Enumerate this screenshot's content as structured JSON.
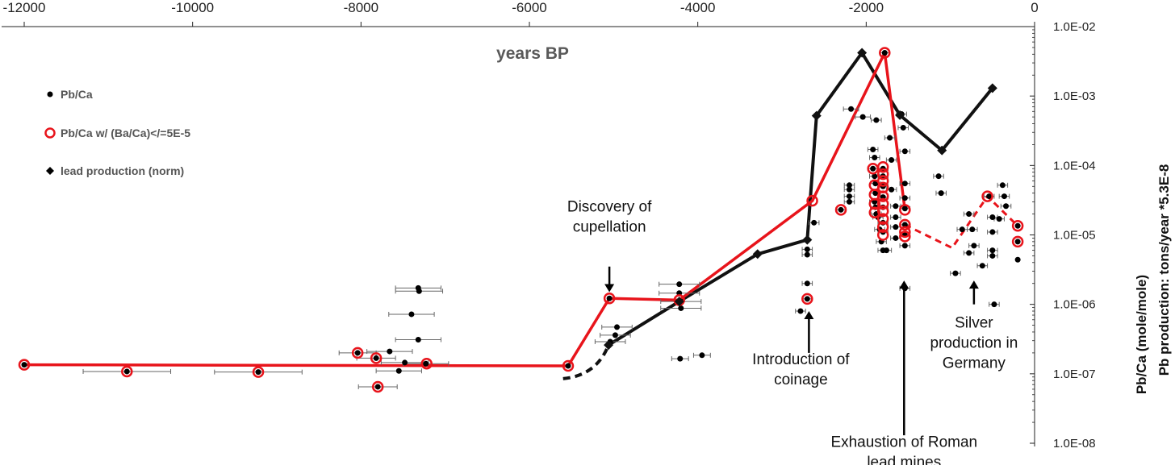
{
  "chart_data": {
    "type": "scatter",
    "title": "",
    "xlabel": "years BP",
    "ylabel_lines": [
      "Pb/Ca (mole/mole)",
      "Pb production: tons/year *5.3E-8"
    ],
    "xlim": [
      -12000,
      0
    ],
    "ylim": [
      1e-08,
      0.01
    ],
    "yscale": "log",
    "x_ticks": [
      -12000,
      -10000,
      -8000,
      -6000,
      -4000,
      -2000,
      0
    ],
    "x_tick_labels": [
      "-12000",
      "-10000",
      "-8000",
      "-6000",
      "-4000",
      "-2000",
      "0"
    ],
    "y_ticks": [
      1e-08,
      1e-07,
      1e-06,
      1e-05,
      0.0001,
      0.001,
      0.01
    ],
    "y_tick_labels": [
      "1.0E-08",
      "1.0E-07",
      "1.0E-06",
      "1.0E-05",
      "1.0E-04",
      "1.0E-03",
      "1.0E-02"
    ],
    "legend": {
      "position": "top-left",
      "entries": [
        {
          "label": "Pb/Ca",
          "marker": "dot"
        },
        {
          "label": "Pb/Ca w/ (Ba/Ca)</=5E-5",
          "marker": "red-circle"
        },
        {
          "label": "lead production (norm)",
          "marker": "diamond"
        }
      ]
    },
    "series": [
      {
        "name": "Pb/Ca",
        "color": "#000000",
        "points": [
          {
            "x": -12000,
            "y": 1.35e-07,
            "err": 0
          },
          {
            "x": -10780,
            "y": 1.08e-07,
            "err": 520
          },
          {
            "x": -9220,
            "y": 1.06e-07,
            "err": 520
          },
          {
            "x": -8040,
            "y": 2e-07,
            "err": 220
          },
          {
            "x": -7800,
            "y": 6.5e-08,
            "err": 230
          },
          {
            "x": -7820,
            "y": 1.68e-07,
            "err": 230
          },
          {
            "x": -7660,
            "y": 2.1e-07,
            "err": 270
          },
          {
            "x": -7550,
            "y": 1.1e-07,
            "err": 270
          },
          {
            "x": -7480,
            "y": 1.45e-07,
            "err": 280
          },
          {
            "x": -7320,
            "y": 1.72e-06,
            "err": 270
          },
          {
            "x": -7310,
            "y": 1.55e-06,
            "err": 280
          },
          {
            "x": -7400,
            "y": 7.2e-07,
            "err": 270
          },
          {
            "x": -7320,
            "y": 3.1e-07,
            "err": 270
          },
          {
            "x": -7230,
            "y": 1.4e-07,
            "err": 270
          },
          {
            "x": -5540,
            "y": 1.3e-07,
            "err": 0
          },
          {
            "x": -5050,
            "y": 1.22e-06,
            "err": 0
          },
          {
            "x": -4960,
            "y": 4.7e-07,
            "err": 180
          },
          {
            "x": -4980,
            "y": 3.6e-07,
            "err": 180
          },
          {
            "x": -5040,
            "y": 2.9e-07,
            "err": 180
          },
          {
            "x": -4220,
            "y": 1.95e-06,
            "err": 240
          },
          {
            "x": -4220,
            "y": 1.45e-06,
            "err": 240
          },
          {
            "x": -4200,
            "y": 1.1e-06,
            "err": 240
          },
          {
            "x": -4200,
            "y": 8.8e-07,
            "err": 240
          },
          {
            "x": -4210,
            "y": 1.65e-07,
            "err": 100
          },
          {
            "x": -3950,
            "y": 1.85e-07,
            "err": 100
          },
          {
            "x": -2700,
            "y": 2e-06,
            "err": 60
          },
          {
            "x": -2700,
            "y": 1.2e-06,
            "err": 60
          },
          {
            "x": -2780,
            "y": 8e-07,
            "err": 60
          },
          {
            "x": -2700,
            "y": 6.2e-06,
            "err": 60
          },
          {
            "x": -2700,
            "y": 5.2e-06,
            "err": 60
          },
          {
            "x": -2620,
            "y": 1.5e-05,
            "err": 60
          },
          {
            "x": -2300,
            "y": 2.3e-05,
            "err": 60
          },
          {
            "x": -2200,
            "y": 5.2e-05,
            "err": 60
          },
          {
            "x": -2200,
            "y": 4.5e-05,
            "err": 60
          },
          {
            "x": -2200,
            "y": 3.6e-05,
            "err": 60
          },
          {
            "x": -2200,
            "y": 3e-05,
            "err": 60
          },
          {
            "x": -2180,
            "y": 0.00065,
            "err": 90
          },
          {
            "x": -2040,
            "y": 0.0005,
            "err": 90
          },
          {
            "x": -1880,
            "y": 0.00045,
            "err": 60
          },
          {
            "x": -1920,
            "y": 0.00017,
            "err": 60
          },
          {
            "x": -1900,
            "y": 0.00013,
            "err": 60
          },
          {
            "x": -1920,
            "y": 9e-05,
            "err": 60
          },
          {
            "x": -1900,
            "y": 7e-05,
            "err": 60
          },
          {
            "x": -1890,
            "y": 5.5e-05,
            "err": 60
          },
          {
            "x": -1890,
            "y": 4e-05,
            "err": 60
          },
          {
            "x": -1900,
            "y": 3e-05,
            "err": 60
          },
          {
            "x": -1890,
            "y": 2.5e-05,
            "err": 60
          },
          {
            "x": -1880,
            "y": 2e-05,
            "err": 60
          },
          {
            "x": -1860,
            "y": 1.8e-05,
            "err": 60
          },
          {
            "x": -1840,
            "y": 1.2e-05,
            "err": 60
          },
          {
            "x": -1820,
            "y": 8e-06,
            "err": 60
          },
          {
            "x": -1800,
            "y": 6e-06,
            "err": 60
          },
          {
            "x": -1760,
            "y": 6e-06,
            "err": 60
          },
          {
            "x": -1800,
            "y": 9e-05,
            "err": 60
          },
          {
            "x": -1800,
            "y": 7e-05,
            "err": 60
          },
          {
            "x": -1800,
            "y": 5e-05,
            "err": 60
          },
          {
            "x": -1800,
            "y": 3.5e-05,
            "err": 60
          },
          {
            "x": -1800,
            "y": 2.5e-05,
            "err": 60
          },
          {
            "x": -1800,
            "y": 1.5e-05,
            "err": 60
          },
          {
            "x": -1800,
            "y": 1.1e-05,
            "err": 60
          },
          {
            "x": -1780,
            "y": 0.0042,
            "err": 60
          },
          {
            "x": -1720,
            "y": 0.00025,
            "err": 60
          },
          {
            "x": -1700,
            "y": 0.00012,
            "err": 60
          },
          {
            "x": -1700,
            "y": 4.5e-05,
            "err": 60
          },
          {
            "x": -1650,
            "y": 2.6e-05,
            "err": 60
          },
          {
            "x": -1650,
            "y": 1.8e-05,
            "err": 60
          },
          {
            "x": -1650,
            "y": 1.3e-05,
            "err": 60
          },
          {
            "x": -1650,
            "y": 9e-06,
            "err": 60
          },
          {
            "x": -1580,
            "y": 0.00055,
            "err": 60
          },
          {
            "x": -1560,
            "y": 0.00035,
            "err": 60
          },
          {
            "x": -1540,
            "y": 0.00016,
            "err": 60
          },
          {
            "x": -1540,
            "y": 5.5e-05,
            "err": 60
          },
          {
            "x": -1540,
            "y": 3.4e-05,
            "err": 60
          },
          {
            "x": -1540,
            "y": 2.4e-05,
            "err": 60
          },
          {
            "x": -1540,
            "y": 1.4e-05,
            "err": 60
          },
          {
            "x": -1540,
            "y": 1e-05,
            "err": 60
          },
          {
            "x": -1540,
            "y": 7e-06,
            "err": 60
          },
          {
            "x": -1540,
            "y": 1.7e-06,
            "err": 60
          },
          {
            "x": -1140,
            "y": 7e-05,
            "err": 60
          },
          {
            "x": -1110,
            "y": 4e-05,
            "err": 60
          },
          {
            "x": -940,
            "y": 2.8e-06,
            "err": 60
          },
          {
            "x": -860,
            "y": 1.2e-05,
            "err": 60
          },
          {
            "x": -780,
            "y": 2e-05,
            "err": 60
          },
          {
            "x": -740,
            "y": 1.2e-05,
            "err": 60
          },
          {
            "x": -780,
            "y": 5.5e-06,
            "err": 60
          },
          {
            "x": -720,
            "y": 7e-06,
            "err": 60
          },
          {
            "x": -620,
            "y": 3.6e-06,
            "err": 60
          },
          {
            "x": -540,
            "y": 3.6e-05,
            "err": 60
          },
          {
            "x": -500,
            "y": 1.8e-05,
            "err": 60
          },
          {
            "x": -500,
            "y": 1.1e-05,
            "err": 60
          },
          {
            "x": -500,
            "y": 6e-06,
            "err": 60
          },
          {
            "x": -500,
            "y": 5e-06,
            "err": 60
          },
          {
            "x": -480,
            "y": 1e-06,
            "err": 60
          },
          {
            "x": -420,
            "y": 1.7e-05,
            "err": 60
          },
          {
            "x": -380,
            "y": 5.2e-05,
            "err": 60
          },
          {
            "x": -360,
            "y": 3.6e-05,
            "err": 60
          },
          {
            "x": -340,
            "y": 2.6e-05,
            "err": 60
          },
          {
            "x": -200,
            "y": 1.35e-05,
            "err": 0
          },
          {
            "x": -200,
            "y": 8e-06,
            "err": 0
          },
          {
            "x": -200,
            "y": 4.4e-06,
            "err": 0
          }
        ]
      },
      {
        "name": "Pb/Ca w/ (Ba/Ca)</=5E-5",
        "color": "#e8141b",
        "line_points": [
          {
            "x": -12000,
            "y": 1.35e-07
          },
          {
            "x": -5540,
            "y": 1.3e-07
          },
          {
            "x": -5050,
            "y": 1.22e-06
          },
          {
            "x": -4220,
            "y": 1.15e-06
          },
          {
            "x": -2640,
            "y": 3.1e-05
          },
          {
            "x": -1780,
            "y": 0.0042
          },
          {
            "x": -1540,
            "y": 2.3e-05
          }
        ],
        "dashed_points": [
          {
            "x": -1540,
            "y": 1.4e-05
          },
          {
            "x": -980,
            "y": 6.5e-06
          },
          {
            "x": -560,
            "y": 3.6e-05
          },
          {
            "x": -200,
            "y": 1.35e-05
          }
        ],
        "circles": [
          {
            "x": -12000,
            "y": 1.35e-07
          },
          {
            "x": -10780,
            "y": 1.08e-07
          },
          {
            "x": -9220,
            "y": 1.06e-07
          },
          {
            "x": -8040,
            "y": 2e-07
          },
          {
            "x": -7820,
            "y": 1.68e-07
          },
          {
            "x": -7800,
            "y": 6.5e-08
          },
          {
            "x": -7220,
            "y": 1.4e-07
          },
          {
            "x": -5540,
            "y": 1.3e-07
          },
          {
            "x": -5050,
            "y": 1.22e-06
          },
          {
            "x": -4220,
            "y": 1.15e-06
          },
          {
            "x": -2640,
            "y": 3.1e-05
          },
          {
            "x": -2300,
            "y": 2.3e-05
          },
          {
            "x": -2700,
            "y": 1.2e-06
          },
          {
            "x": -1920,
            "y": 9e-05
          },
          {
            "x": -1900,
            "y": 5.2e-05
          },
          {
            "x": -1900,
            "y": 3.8e-05
          },
          {
            "x": -1900,
            "y": 2.8e-05
          },
          {
            "x": -1900,
            "y": 2.1e-05
          },
          {
            "x": -1800,
            "y": 9.5e-05
          },
          {
            "x": -1800,
            "y": 7.5e-05
          },
          {
            "x": -1800,
            "y": 6e-05
          },
          {
            "x": -1800,
            "y": 4.8e-05
          },
          {
            "x": -1800,
            "y": 3.6e-05
          },
          {
            "x": -1800,
            "y": 2.8e-05
          },
          {
            "x": -1800,
            "y": 2.2e-05
          },
          {
            "x": -1800,
            "y": 1.7e-05
          },
          {
            "x": -1800,
            "y": 1.3e-05
          },
          {
            "x": -1800,
            "y": 1e-05
          },
          {
            "x": -1780,
            "y": 0.0042
          },
          {
            "x": -1540,
            "y": 2.3e-05
          },
          {
            "x": -1540,
            "y": 1.4e-05
          },
          {
            "x": -1540,
            "y": 1.1e-05
          },
          {
            "x": -1540,
            "y": 9.5e-06
          },
          {
            "x": -560,
            "y": 3.6e-05
          },
          {
            "x": -200,
            "y": 1.35e-05
          },
          {
            "x": -200,
            "y": 8e-06
          }
        ]
      },
      {
        "name": "lead production (norm)",
        "color": "#111111",
        "line_points": [
          {
            "x": -5060,
            "y": 2.6e-07
          },
          {
            "x": -4220,
            "y": 1.1e-06
          },
          {
            "x": -3290,
            "y": 5.3e-06
          },
          {
            "x": -2700,
            "y": 8.5e-06
          },
          {
            "x": -2590,
            "y": 0.00052
          },
          {
            "x": -2050,
            "y": 0.0042
          },
          {
            "x": -1600,
            "y": 0.00053
          },
          {
            "x": -1100,
            "y": 0.000165
          },
          {
            "x": -500,
            "y": 0.0013
          }
        ],
        "dashed_points": [
          {
            "x": -5600,
            "y": 8.5e-08
          },
          {
            "x": -5200,
            "y": 9.5e-08
          },
          {
            "x": -5060,
            "y": 2.6e-07
          }
        ]
      }
    ],
    "annotations": [
      {
        "lines": [
          "Discovery of",
          "cupellation"
        ],
        "x": -5050,
        "arrow_from_y": 3.5e-06,
        "arrow_to_y": 1.5e-06,
        "text_y": 9e-06
      },
      {
        "lines": [
          "Introduction of",
          "coinage"
        ],
        "x": -2680,
        "arrow_from_y": 2e-07,
        "arrow_to_y": 8e-07,
        "text_y": 1.7e-07
      },
      {
        "lines": [
          "Exhaustion of Roman",
          "lead mines"
        ],
        "x": -1550,
        "arrow_from_y": 1.3e-08,
        "arrow_to_y": 2.2e-06,
        "text_y": 1.1e-08
      },
      {
        "lines": [
          "Silver",
          "production in",
          "Germany"
        ],
        "x": -720,
        "arrow_from_y": 1e-06,
        "arrow_to_y": 2.2e-06,
        "text_y": 5.7e-07
      }
    ]
  }
}
